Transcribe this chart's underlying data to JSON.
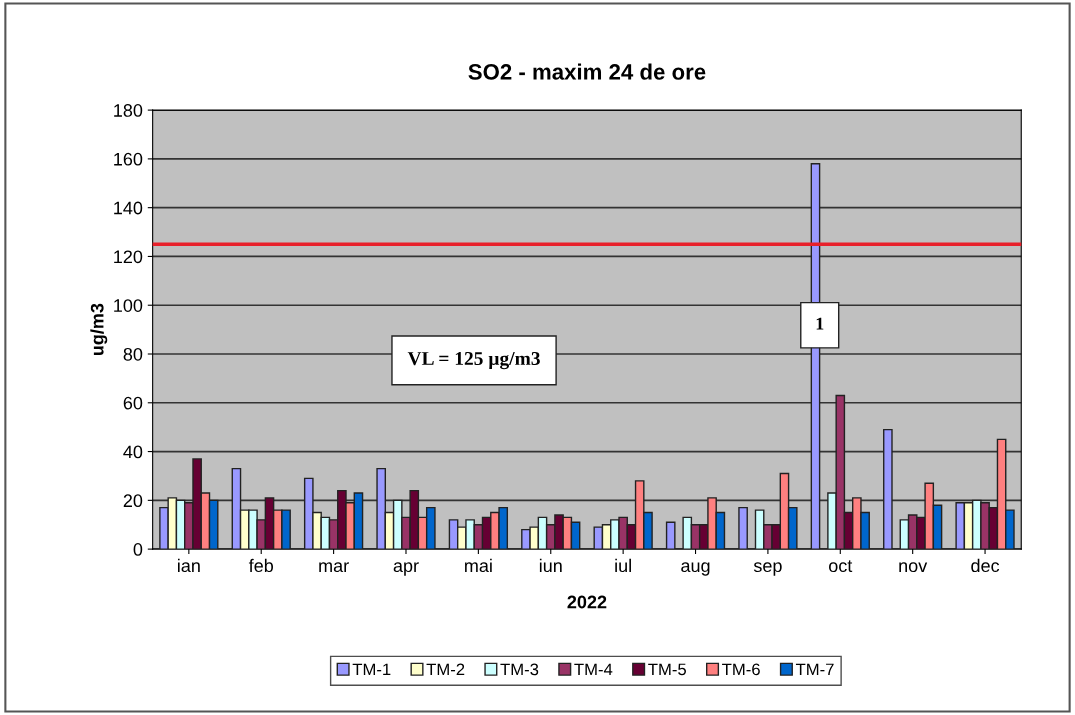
{
  "chart_data": {
    "type": "bar",
    "title": "SO2 - maxim 24 de ore",
    "xlabel": "2022",
    "ylabel": "ug/m3",
    "categories": [
      "ian",
      "feb",
      "mar",
      "apr",
      "mai",
      "iun",
      "iul",
      "aug",
      "sep",
      "oct",
      "nov",
      "dec"
    ],
    "series": [
      {
        "name": "TM-1",
        "color": "#9999ff",
        "values": [
          17,
          33,
          29,
          33,
          12,
          8,
          9,
          11,
          17,
          158,
          49,
          19
        ]
      },
      {
        "name": "TM-2",
        "color": "#ffffcc",
        "values": [
          21,
          16,
          15,
          15,
          9,
          9,
          10,
          null,
          null,
          null,
          null,
          19
        ]
      },
      {
        "name": "TM-3",
        "color": "#ccffff",
        "values": [
          20,
          16,
          13,
          20,
          12,
          13,
          12,
          13,
          16,
          23,
          12,
          20
        ]
      },
      {
        "name": "TM-4",
        "color": "#993366",
        "values": [
          19,
          12,
          12,
          13,
          10,
          10,
          13,
          10,
          10,
          63,
          14,
          19
        ]
      },
      {
        "name": "TM-5",
        "color": "#660033",
        "values": [
          37,
          21,
          24,
          24,
          13,
          14,
          10,
          10,
          10,
          15,
          13,
          17
        ]
      },
      {
        "name": "TM-6",
        "color": "#ff8080",
        "values": [
          23,
          16,
          19,
          13,
          15,
          13,
          28,
          21,
          31,
          21,
          27,
          45
        ]
      },
      {
        "name": "TM-7",
        "color": "#0066cc",
        "values": [
          20,
          16,
          23,
          17,
          17,
          11,
          15,
          15,
          17,
          15,
          18,
          16
        ]
      }
    ],
    "ylim": [
      0,
      180
    ],
    "yticks": [
      0,
      20,
      40,
      60,
      80,
      100,
      120,
      140,
      160,
      180
    ],
    "grid": "y",
    "legend": "bottom",
    "ref_lines": [
      {
        "axis": "y",
        "value": 125,
        "color": "#e8202a"
      }
    ],
    "annotations": [
      "VL = 125 µg/m3",
      "1"
    ]
  }
}
